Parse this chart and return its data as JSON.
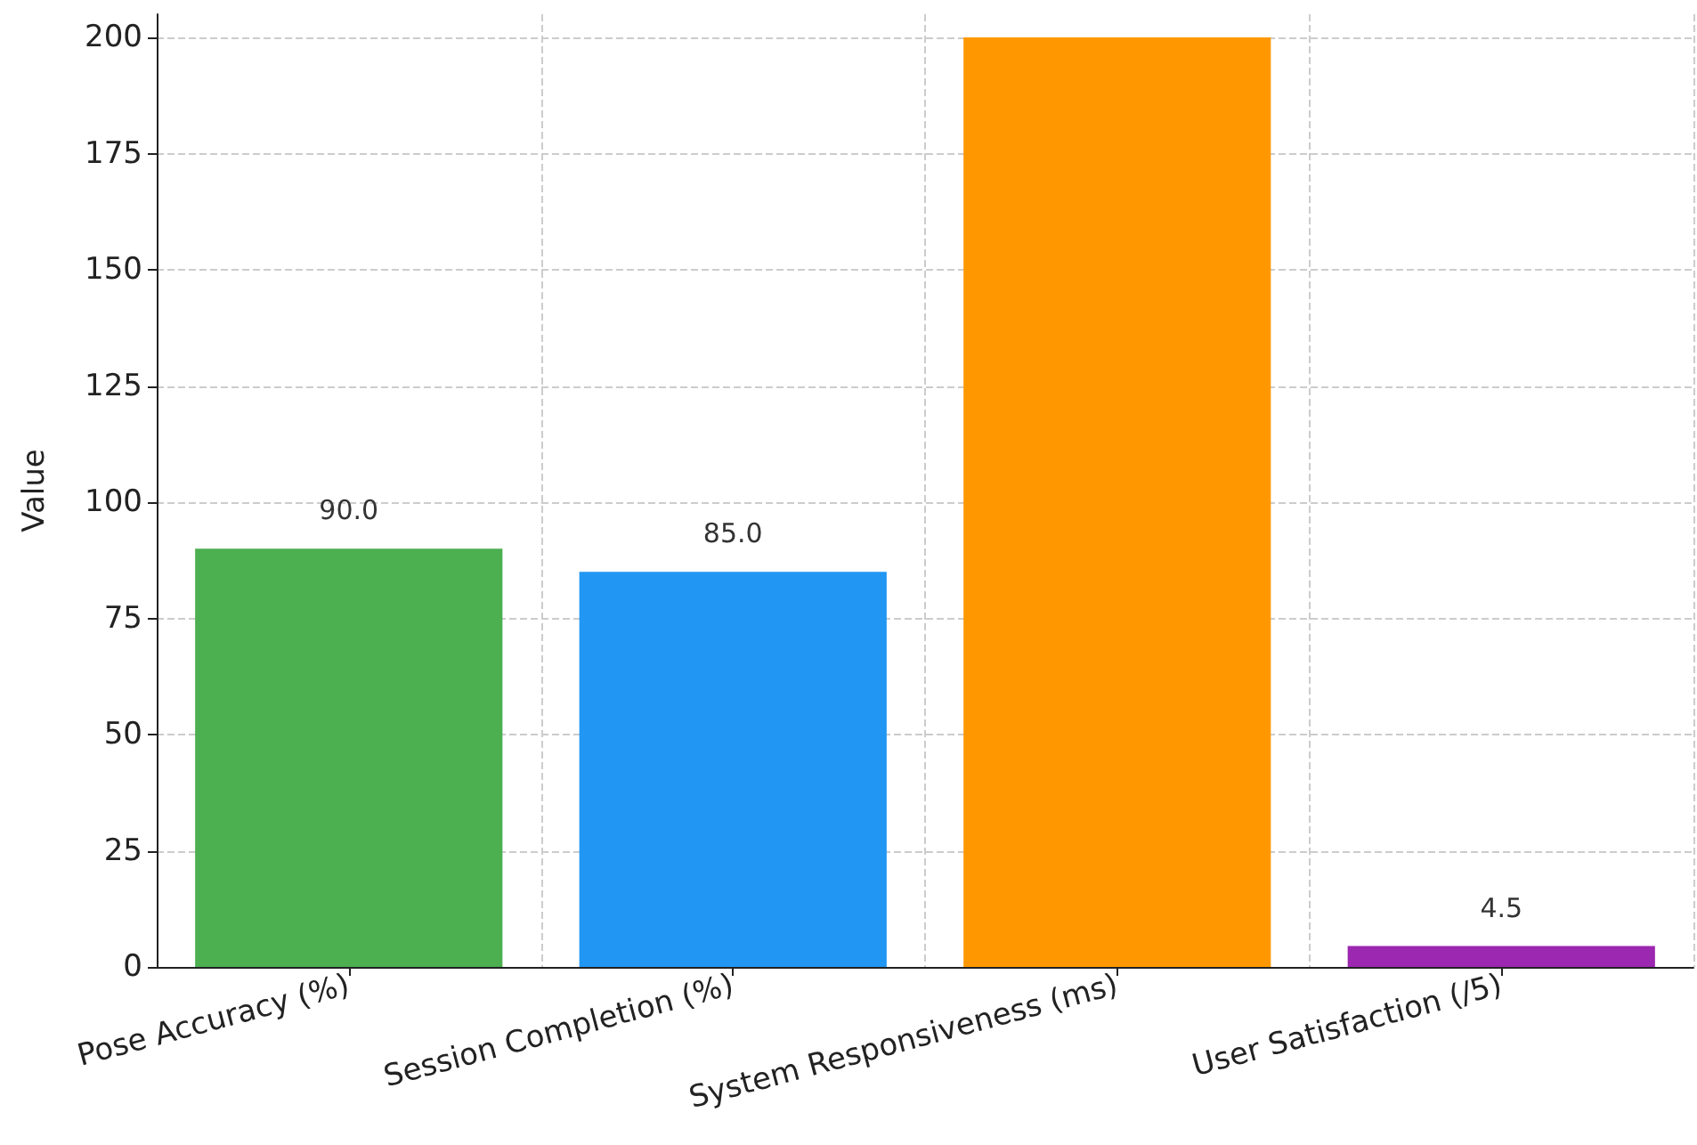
{
  "chart_data": {
    "type": "bar",
    "ylabel": "Value",
    "categories": [
      "Pose Accuracy (%)",
      "Session Completion (%)",
      "System Responsiveness (ms)",
      "User Satisfaction (/5)"
    ],
    "values": [
      90,
      85,
      200,
      4.5
    ],
    "colors": [
      "#4caf50",
      "#2196f3",
      "#ff9800",
      "#9c27b0"
    ],
    "value_labels": [
      "90.0",
      "85.0",
      null,
      "4.5"
    ],
    "ylim": [
      0,
      205
    ],
    "yticks": [
      0,
      25,
      50,
      75,
      100,
      125,
      150,
      175,
      200
    ],
    "grid": true
  }
}
